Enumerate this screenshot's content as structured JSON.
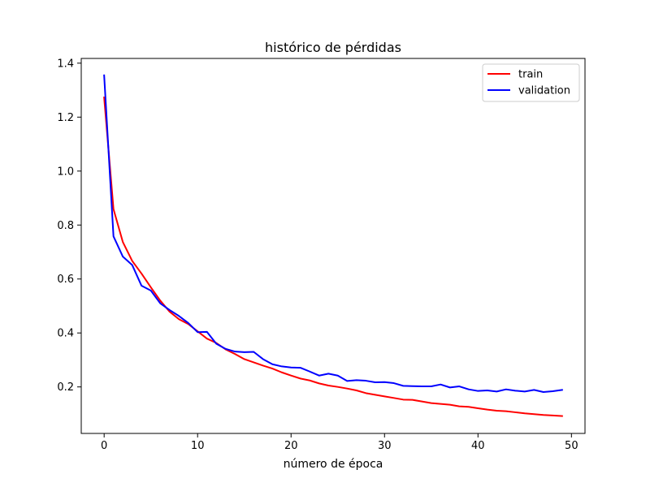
{
  "chart_data": {
    "type": "line",
    "title": "histórico de pérdidas",
    "xlabel": "número de época",
    "ylabel": "",
    "xlim": [
      -2.45,
      51.45
    ],
    "ylim": [
      0.0276,
      1.4175
    ],
    "xticks": [
      0,
      10,
      20,
      30,
      40,
      50
    ],
    "yticks": [
      0.2,
      0.4,
      0.6,
      0.8,
      1.0,
      1.2,
      1.4
    ],
    "ytick_labels": [
      "0.2",
      "0.4",
      "0.6",
      "0.8",
      "1.0",
      "1.2",
      "1.4"
    ],
    "grid": false,
    "legend_position": "top-right",
    "x": [
      0,
      1,
      2,
      3,
      4,
      5,
      6,
      7,
      8,
      9,
      10,
      11,
      12,
      13,
      14,
      15,
      16,
      17,
      18,
      19,
      20,
      21,
      22,
      23,
      24,
      25,
      26,
      27,
      28,
      29,
      30,
      31,
      32,
      33,
      34,
      35,
      36,
      37,
      38,
      39,
      40,
      41,
      42,
      43,
      44,
      45,
      46,
      47,
      48,
      49
    ],
    "series": [
      {
        "name": "train",
        "color": "#ff0000",
        "values": [
          1.273,
          0.859,
          0.737,
          0.667,
          0.62,
          0.569,
          0.52,
          0.479,
          0.451,
          0.433,
          0.406,
          0.379,
          0.363,
          0.339,
          0.322,
          0.303,
          0.291,
          0.279,
          0.268,
          0.254,
          0.242,
          0.231,
          0.224,
          0.213,
          0.205,
          0.2,
          0.194,
          0.187,
          0.177,
          0.171,
          0.165,
          0.159,
          0.153,
          0.152,
          0.146,
          0.14,
          0.137,
          0.134,
          0.128,
          0.126,
          0.121,
          0.116,
          0.112,
          0.11,
          0.106,
          0.102,
          0.099,
          0.096,
          0.094,
          0.092
        ]
      },
      {
        "name": "validation",
        "color": "#0000ff",
        "values": [
          1.355,
          0.758,
          0.683,
          0.652,
          0.575,
          0.557,
          0.51,
          0.485,
          0.463,
          0.437,
          0.403,
          0.404,
          0.36,
          0.341,
          0.331,
          0.329,
          0.33,
          0.303,
          0.284,
          0.276,
          0.272,
          0.271,
          0.257,
          0.242,
          0.249,
          0.242,
          0.222,
          0.225,
          0.223,
          0.217,
          0.218,
          0.214,
          0.204,
          0.203,
          0.202,
          0.202,
          0.209,
          0.198,
          0.202,
          0.191,
          0.185,
          0.187,
          0.183,
          0.191,
          0.186,
          0.183,
          0.189,
          0.181,
          0.184,
          0.189
        ]
      }
    ]
  }
}
